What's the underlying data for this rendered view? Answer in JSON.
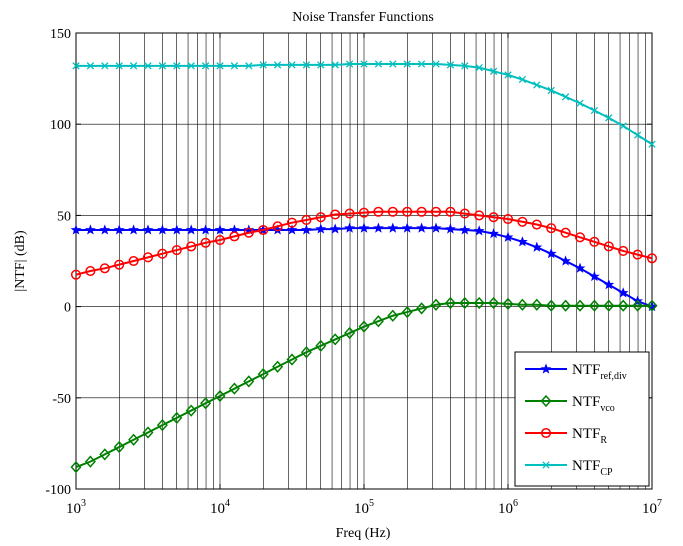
{
  "chart_data": {
    "type": "line",
    "title": "Noise Transfer Functions",
    "xlabel": "Freq (Hz)",
    "ylabel": "|NTF| (dB)",
    "xscale": "log",
    "xlim": [
      1000,
      10000000
    ],
    "ylim": [
      -100,
      150
    ],
    "x_ticks": [
      {
        "base": "10",
        "exp": "3"
      },
      {
        "base": "10",
        "exp": "4"
      },
      {
        "base": "10",
        "exp": "5"
      },
      {
        "base": "10",
        "exp": "6"
      },
      {
        "base": "10",
        "exp": "7"
      }
    ],
    "y_ticks": [
      "-100",
      "-50",
      "0",
      "50",
      "100",
      "150"
    ],
    "grid": true,
    "legend_position": "bottom-right",
    "x": [
      1000,
      1259,
      1585,
      1995,
      2512,
      3162,
      3981,
      5012,
      6310,
      7943,
      10000,
      12589,
      15849,
      19953,
      25119,
      31623,
      39811,
      50119,
      63096,
      79433,
      100000,
      125893,
      158489,
      199526,
      251189,
      316228,
      398107,
      501187,
      630957,
      794328,
      1000000,
      1258925,
      1584893,
      1995262,
      2511886,
      3162278,
      3981072,
      5011872,
      6309573,
      7943282,
      10000000
    ],
    "series": [
      {
        "label_main": "NTF",
        "label_sub": "ref,div",
        "color": "#0000ff",
        "marker": "star",
        "values": [
          42,
          42,
          42,
          42,
          42,
          42,
          42,
          42,
          42,
          42,
          42,
          42,
          42,
          42,
          42,
          42,
          42,
          42.5,
          42.5,
          43,
          43,
          43,
          43,
          43,
          43,
          43,
          42.5,
          42,
          41.5,
          40,
          38,
          35.5,
          32.5,
          29,
          25,
          21,
          16.5,
          12,
          7.5,
          3,
          0
        ]
      },
      {
        "label_main": "NTF",
        "label_sub": "vco",
        "color": "#008000",
        "marker": "diamond",
        "values": [
          -88,
          -85,
          -81,
          -77,
          -73,
          -69,
          -65,
          -61,
          -57,
          -53,
          -49,
          -45,
          -41,
          -37,
          -33,
          -29,
          -25,
          -21.5,
          -18,
          -14.5,
          -11,
          -8,
          -5,
          -3,
          -1,
          1,
          2,
          2,
          2,
          2,
          1.5,
          1,
          1,
          0.5,
          0.5,
          0.5,
          0.5,
          0.5,
          0.5,
          0.5,
          0.5
        ]
      },
      {
        "label_main": "NTF",
        "label_sub": "R",
        "color": "#ff0000",
        "marker": "circle",
        "values": [
          17.5,
          19.5,
          21,
          23,
          25,
          27,
          29,
          31,
          33,
          35,
          36.5,
          38.5,
          40.5,
          42,
          44,
          46,
          47.5,
          49,
          50.5,
          51,
          51.5,
          52,
          52,
          52,
          52,
          52,
          52,
          51,
          50,
          49,
          48,
          46.5,
          45,
          43,
          40.5,
          38,
          35.5,
          33,
          30.5,
          28.5,
          26.5
        ]
      },
      {
        "label_main": "NTF",
        "label_sub": "CP",
        "color": "#00bfbf",
        "marker": "x",
        "values": [
          132,
          132,
          132,
          132,
          132,
          132,
          132,
          132,
          132,
          132,
          132,
          132,
          132,
          132.5,
          132.5,
          132.5,
          132.5,
          132.5,
          132.5,
          133,
          133,
          133,
          133,
          133,
          133,
          133,
          132.5,
          132,
          131,
          129,
          127,
          124.5,
          121.5,
          118.5,
          115,
          111.5,
          107.5,
          103.5,
          99,
          94,
          89
        ]
      }
    ]
  }
}
